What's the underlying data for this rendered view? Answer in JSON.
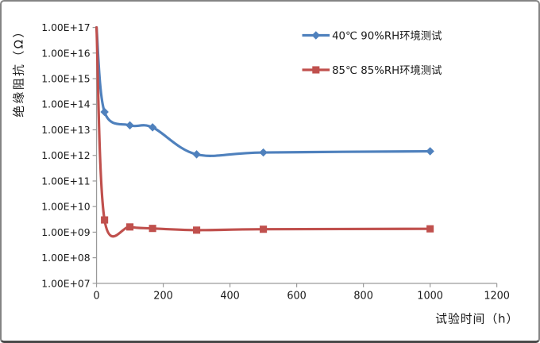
{
  "chart_data": {
    "type": "line",
    "title": "",
    "xlabel": "试验时间（h）",
    "ylabel": "绝缘阻抗（Ω）",
    "grid": false,
    "legend": {
      "position": "top-right-inside"
    },
    "x_axis": {
      "min": 0,
      "max": 1200,
      "tick_labels": [
        "0",
        "200",
        "400",
        "600",
        "800",
        "1000",
        "1200"
      ]
    },
    "y_axis": {
      "scale": "log",
      "min_exp": 7,
      "max_exp": 17,
      "tick_labels": [
        "1.00E+07",
        "1.00E+08",
        "1.00E+09",
        "1.00E+10",
        "1.00E+11",
        "1.00E+12",
        "1.00E+13",
        "1.00E+14",
        "1.00E+15",
        "1.00E+16",
        "1.00E+17"
      ]
    },
    "series": [
      {
        "name": "40℃ 90%RH环境测试",
        "color": "#4F81BD",
        "marker": "diamond",
        "points": [
          [
            0,
            1e+17
          ],
          [
            24,
            50000000000000.0
          ],
          [
            100,
            15000000000000.0
          ],
          [
            168,
            12500000000000.0
          ],
          [
            300,
            1100000000000.0
          ],
          [
            500,
            1300000000000.0
          ],
          [
            1000,
            1450000000000.0
          ]
        ]
      },
      {
        "name": "85℃ 85%RH环境测试",
        "color": "#C0504D",
        "marker": "square",
        "points": [
          [
            0,
            1e+17
          ],
          [
            24,
            3000000000.0
          ],
          [
            100,
            1600000000.0
          ],
          [
            168,
            1400000000.0
          ],
          [
            300,
            1200000000.0
          ],
          [
            500,
            1300000000.0
          ],
          [
            1000,
            1350000000.0
          ]
        ]
      }
    ]
  }
}
